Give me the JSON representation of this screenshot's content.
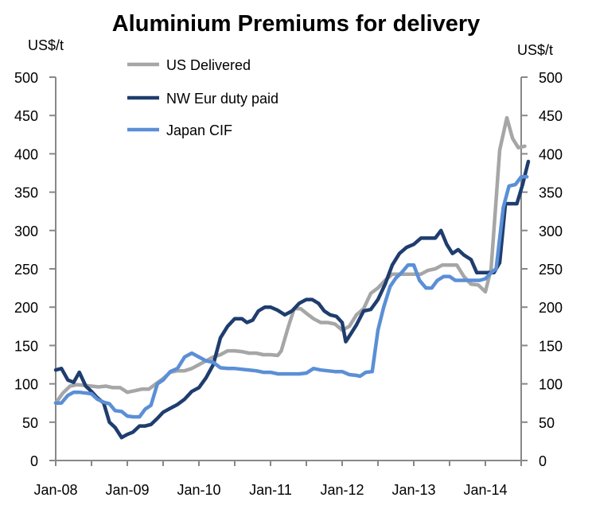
{
  "chart_data": {
    "type": "line",
    "title": "Aluminium Premiums for delivery",
    "ylabel_left": "US$/t",
    "ylabel_right": "US$/t",
    "xlabel": "",
    "ylim": [
      0,
      500
    ],
    "y_ticks": [
      0,
      50,
      100,
      150,
      200,
      250,
      300,
      350,
      400,
      450,
      500
    ],
    "x_ticks": [
      {
        "label": "Jan-08",
        "value": 2008
      },
      {
        "label": "Jan-09",
        "value": 2009
      },
      {
        "label": "Jan-10",
        "value": 2010
      },
      {
        "label": "Jan-11",
        "value": 2011
      },
      {
        "label": "Jan-12",
        "value": 2012
      },
      {
        "label": "Jan-13",
        "value": 2013
      },
      {
        "label": "Jan-14",
        "value": 2014
      }
    ],
    "xlim": [
      2008.0,
      2014.5
    ],
    "grid": false,
    "legend_position": "top-left",
    "series": [
      {
        "name": "US Delivered",
        "color": "#a6a6a6",
        "points": [
          [
            2008.0,
            75
          ],
          [
            2008.1,
            88
          ],
          [
            2008.2,
            97
          ],
          [
            2008.3,
            99
          ],
          [
            2008.4,
            98
          ],
          [
            2008.5,
            97
          ],
          [
            2008.6,
            96
          ],
          [
            2008.7,
            97
          ],
          [
            2008.8,
            95
          ],
          [
            2008.9,
            95
          ],
          [
            2009.0,
            89
          ],
          [
            2009.1,
            91
          ],
          [
            2009.2,
            93
          ],
          [
            2009.3,
            93
          ],
          [
            2009.4,
            100
          ],
          [
            2009.5,
            107
          ],
          [
            2009.6,
            115
          ],
          [
            2009.7,
            117
          ],
          [
            2009.8,
            117
          ],
          [
            2009.9,
            120
          ],
          [
            2010.0,
            125
          ],
          [
            2010.1,
            130
          ],
          [
            2010.2,
            135
          ],
          [
            2010.3,
            138
          ],
          [
            2010.4,
            143
          ],
          [
            2010.5,
            143
          ],
          [
            2010.6,
            142
          ],
          [
            2010.7,
            140
          ],
          [
            2010.8,
            140
          ],
          [
            2010.9,
            138
          ],
          [
            2011.0,
            138
          ],
          [
            2011.1,
            137
          ],
          [
            2011.15,
            143
          ],
          [
            2011.25,
            175
          ],
          [
            2011.33,
            198
          ],
          [
            2011.42,
            198
          ],
          [
            2011.5,
            192
          ],
          [
            2011.6,
            185
          ],
          [
            2011.7,
            180
          ],
          [
            2011.8,
            180
          ],
          [
            2011.9,
            178
          ],
          [
            2012.0,
            170
          ],
          [
            2012.1,
            175
          ],
          [
            2012.2,
            190
          ],
          [
            2012.3,
            198
          ],
          [
            2012.4,
            218
          ],
          [
            2012.5,
            225
          ],
          [
            2012.6,
            235
          ],
          [
            2012.7,
            243
          ],
          [
            2012.8,
            243
          ],
          [
            2012.9,
            243
          ],
          [
            2013.0,
            243
          ],
          [
            2013.1,
            243
          ],
          [
            2013.2,
            248
          ],
          [
            2013.3,
            250
          ],
          [
            2013.4,
            255
          ],
          [
            2013.5,
            255
          ],
          [
            2013.6,
            255
          ],
          [
            2013.7,
            240
          ],
          [
            2013.8,
            230
          ],
          [
            2013.9,
            229
          ],
          [
            2014.0,
            220
          ],
          [
            2014.08,
            250
          ],
          [
            2014.15,
            340
          ],
          [
            2014.2,
            405
          ],
          [
            2014.3,
            447
          ],
          [
            2014.38,
            420
          ],
          [
            2014.46,
            408
          ],
          [
            2014.55,
            410
          ]
        ]
      },
      {
        "name": "NW Eur duty paid",
        "color": "#1f3d6e",
        "points": [
          [
            2008.0,
            118
          ],
          [
            2008.08,
            120
          ],
          [
            2008.17,
            105
          ],
          [
            2008.25,
            102
          ],
          [
            2008.33,
            115
          ],
          [
            2008.42,
            97
          ],
          [
            2008.5,
            90
          ],
          [
            2008.58,
            82
          ],
          [
            2008.67,
            75
          ],
          [
            2008.75,
            50
          ],
          [
            2008.83,
            43
          ],
          [
            2008.92,
            30
          ],
          [
            2009.0,
            34
          ],
          [
            2009.08,
            37
          ],
          [
            2009.17,
            45
          ],
          [
            2009.25,
            45
          ],
          [
            2009.33,
            47
          ],
          [
            2009.42,
            55
          ],
          [
            2009.5,
            63
          ],
          [
            2009.6,
            68
          ],
          [
            2009.7,
            73
          ],
          [
            2009.8,
            80
          ],
          [
            2009.9,
            90
          ],
          [
            2010.0,
            95
          ],
          [
            2010.1,
            108
          ],
          [
            2010.2,
            125
          ],
          [
            2010.3,
            160
          ],
          [
            2010.4,
            175
          ],
          [
            2010.5,
            185
          ],
          [
            2010.6,
            185
          ],
          [
            2010.67,
            180
          ],
          [
            2010.75,
            183
          ],
          [
            2010.83,
            195
          ],
          [
            2010.92,
            200
          ],
          [
            2011.0,
            200
          ],
          [
            2011.1,
            196
          ],
          [
            2011.2,
            190
          ],
          [
            2011.3,
            195
          ],
          [
            2011.4,
            205
          ],
          [
            2011.5,
            210
          ],
          [
            2011.58,
            210
          ],
          [
            2011.67,
            205
          ],
          [
            2011.75,
            195
          ],
          [
            2011.83,
            190
          ],
          [
            2011.92,
            188
          ],
          [
            2012.0,
            180
          ],
          [
            2012.05,
            155
          ],
          [
            2012.12,
            165
          ],
          [
            2012.2,
            177
          ],
          [
            2012.3,
            195
          ],
          [
            2012.4,
            197
          ],
          [
            2012.5,
            210
          ],
          [
            2012.6,
            230
          ],
          [
            2012.7,
            255
          ],
          [
            2012.8,
            270
          ],
          [
            2012.9,
            278
          ],
          [
            2013.0,
            282
          ],
          [
            2013.1,
            290
          ],
          [
            2013.2,
            290
          ],
          [
            2013.3,
            290
          ],
          [
            2013.38,
            300
          ],
          [
            2013.46,
            282
          ],
          [
            2013.54,
            270
          ],
          [
            2013.62,
            275
          ],
          [
            2013.7,
            268
          ],
          [
            2013.8,
            262
          ],
          [
            2013.88,
            245
          ],
          [
            2013.96,
            245
          ],
          [
            2014.05,
            245
          ],
          [
            2014.12,
            245
          ],
          [
            2014.2,
            258
          ],
          [
            2014.28,
            335
          ],
          [
            2014.36,
            335
          ],
          [
            2014.44,
            335
          ],
          [
            2014.52,
            360
          ],
          [
            2014.6,
            390
          ]
        ]
      },
      {
        "name": "Japan CIF",
        "color": "#5b8fd6",
        "points": [
          [
            2008.0,
            75
          ],
          [
            2008.08,
            75
          ],
          [
            2008.17,
            85
          ],
          [
            2008.25,
            89
          ],
          [
            2008.33,
            89
          ],
          [
            2008.42,
            88
          ],
          [
            2008.5,
            87
          ],
          [
            2008.58,
            80
          ],
          [
            2008.67,
            76
          ],
          [
            2008.75,
            74
          ],
          [
            2008.83,
            65
          ],
          [
            2008.92,
            64
          ],
          [
            2009.0,
            58
          ],
          [
            2009.08,
            57
          ],
          [
            2009.17,
            57
          ],
          [
            2009.25,
            67
          ],
          [
            2009.33,
            72
          ],
          [
            2009.42,
            100
          ],
          [
            2009.5,
            105
          ],
          [
            2009.6,
            116
          ],
          [
            2009.7,
            120
          ],
          [
            2009.8,
            135
          ],
          [
            2009.9,
            140
          ],
          [
            2010.0,
            135
          ],
          [
            2010.1,
            130
          ],
          [
            2010.2,
            128
          ],
          [
            2010.3,
            121
          ],
          [
            2010.4,
            120
          ],
          [
            2010.5,
            120
          ],
          [
            2010.6,
            119
          ],
          [
            2010.7,
            118
          ],
          [
            2010.8,
            117
          ],
          [
            2010.9,
            115
          ],
          [
            2011.0,
            115
          ],
          [
            2011.1,
            113
          ],
          [
            2011.2,
            113
          ],
          [
            2011.3,
            113
          ],
          [
            2011.4,
            113
          ],
          [
            2011.5,
            114
          ],
          [
            2011.6,
            120
          ],
          [
            2011.7,
            118
          ],
          [
            2011.8,
            117
          ],
          [
            2011.9,
            116
          ],
          [
            2012.0,
            116
          ],
          [
            2012.1,
            112
          ],
          [
            2012.2,
            111
          ],
          [
            2012.25,
            110
          ],
          [
            2012.33,
            115
          ],
          [
            2012.42,
            116
          ],
          [
            2012.5,
            170
          ],
          [
            2012.58,
            200
          ],
          [
            2012.67,
            227
          ],
          [
            2012.75,
            238
          ],
          [
            2012.83,
            245
          ],
          [
            2012.92,
            255
          ],
          [
            2013.0,
            255
          ],
          [
            2013.08,
            235
          ],
          [
            2013.17,
            225
          ],
          [
            2013.25,
            225
          ],
          [
            2013.33,
            235
          ],
          [
            2013.42,
            240
          ],
          [
            2013.5,
            240
          ],
          [
            2013.58,
            235
          ],
          [
            2013.67,
            235
          ],
          [
            2013.75,
            235
          ],
          [
            2013.83,
            235
          ],
          [
            2013.92,
            235
          ],
          [
            2014.0,
            237
          ],
          [
            2014.08,
            245
          ],
          [
            2014.15,
            250
          ],
          [
            2014.25,
            330
          ],
          [
            2014.33,
            358
          ],
          [
            2014.42,
            360
          ],
          [
            2014.5,
            370
          ],
          [
            2014.58,
            370
          ]
        ]
      }
    ]
  }
}
